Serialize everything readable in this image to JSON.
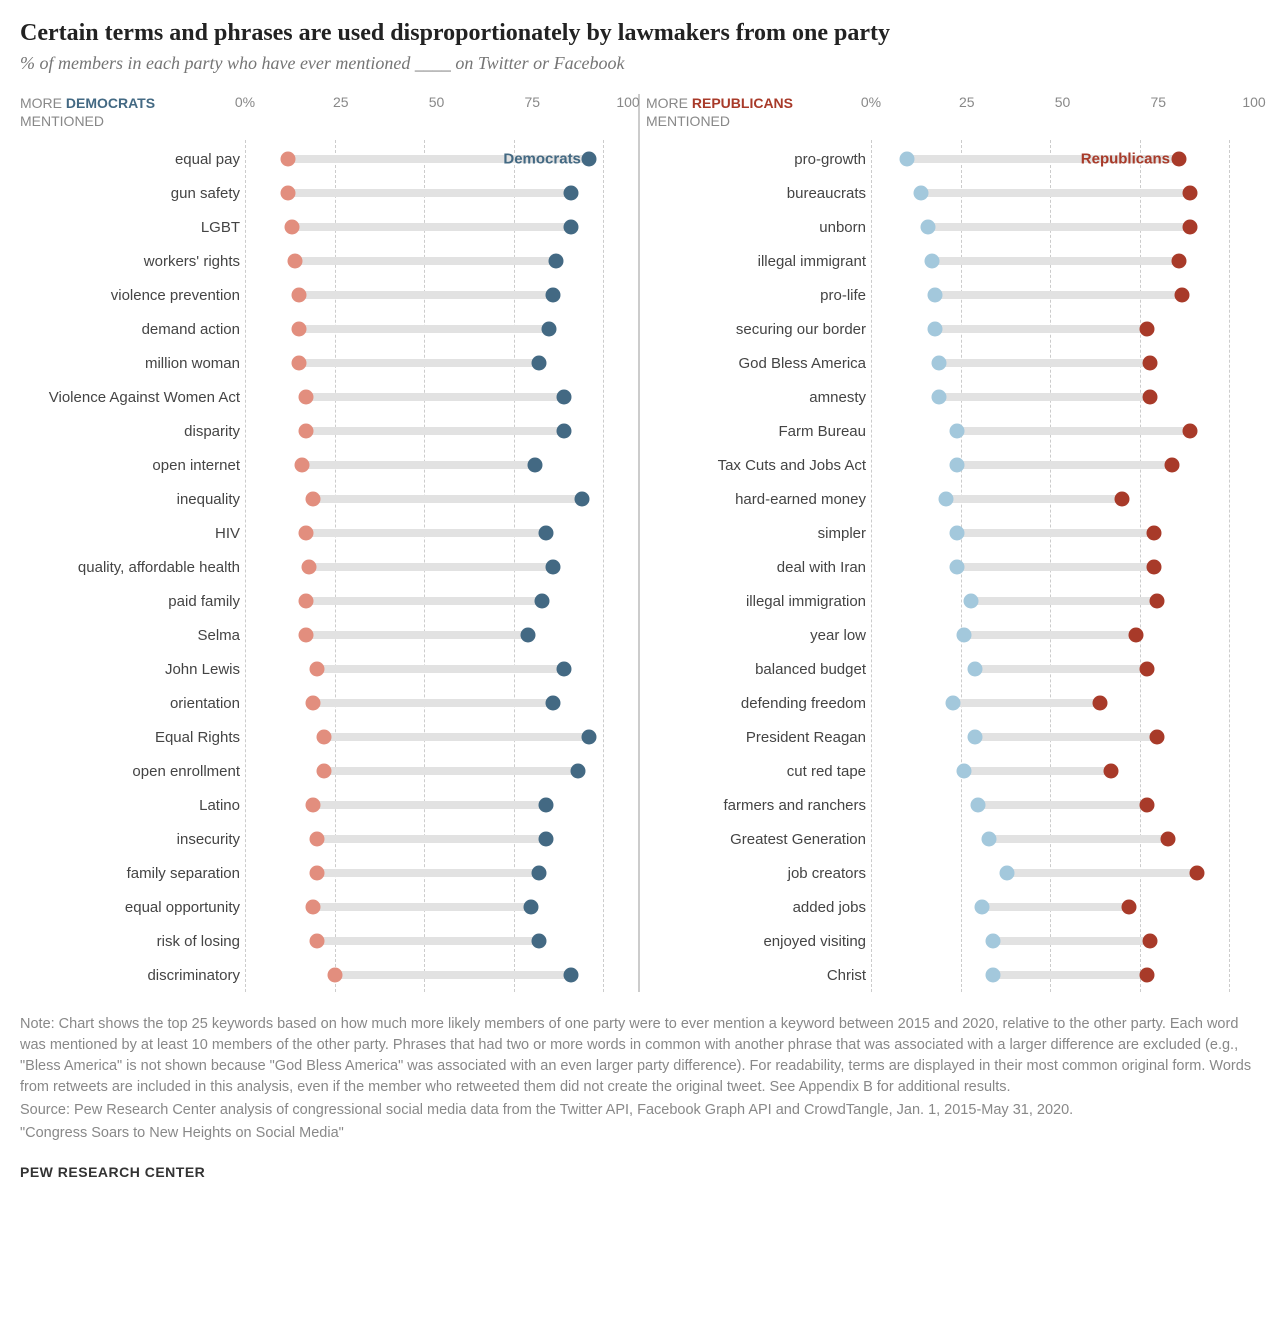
{
  "title": "Certain terms and phrases are used disproportionately by lawmakers from one party",
  "subtitle": "% of members in each party who have ever mentioned ____ on Twitter or Facebook",
  "colors": {
    "dem_strong": "#436983",
    "dem_light": "#a3c8dc",
    "rep_strong": "#a83a29",
    "rep_light": "#e28e7e",
    "bar_bg": "#e2e2e2",
    "text_gray": "#888"
  },
  "axis": {
    "ticks": [
      0,
      25,
      50,
      75,
      100
    ],
    "tick_labels": [
      "0%",
      "25",
      "50",
      "75",
      "100"
    ]
  },
  "left": {
    "label_l1": "MORE ",
    "label_strong": "DEMOCRATS",
    "label_l2": "MENTIONED",
    "series_label": "Democrats",
    "rows": [
      {
        "label": "equal pay",
        "lo": 12,
        "hi": 96
      },
      {
        "label": "gun safety",
        "lo": 12,
        "hi": 91
      },
      {
        "label": "LGBT",
        "lo": 13,
        "hi": 91
      },
      {
        "label": "workers' rights",
        "lo": 14,
        "hi": 87
      },
      {
        "label": "violence prevention",
        "lo": 15,
        "hi": 86
      },
      {
        "label": "demand action",
        "lo": 15,
        "hi": 85
      },
      {
        "label": "million woman",
        "lo": 15,
        "hi": 82
      },
      {
        "label": "Violence Against Women Act",
        "lo": 17,
        "hi": 89
      },
      {
        "label": "disparity",
        "lo": 17,
        "hi": 89
      },
      {
        "label": "open internet",
        "lo": 16,
        "hi": 81
      },
      {
        "label": "inequality",
        "lo": 19,
        "hi": 94
      },
      {
        "label": "HIV",
        "lo": 17,
        "hi": 84
      },
      {
        "label": "quality, affordable health",
        "lo": 18,
        "hi": 86
      },
      {
        "label": "paid family",
        "lo": 17,
        "hi": 83
      },
      {
        "label": "Selma",
        "lo": 17,
        "hi": 79
      },
      {
        "label": "John Lewis",
        "lo": 20,
        "hi": 89
      },
      {
        "label": "orientation",
        "lo": 19,
        "hi": 86
      },
      {
        "label": "Equal Rights",
        "lo": 22,
        "hi": 96
      },
      {
        "label": "open enrollment",
        "lo": 22,
        "hi": 93
      },
      {
        "label": "Latino",
        "lo": 19,
        "hi": 84
      },
      {
        "label": "insecurity",
        "lo": 20,
        "hi": 84
      },
      {
        "label": "family separation",
        "lo": 20,
        "hi": 82
      },
      {
        "label": "equal opportunity",
        "lo": 19,
        "hi": 80
      },
      {
        "label": "risk of losing",
        "lo": 20,
        "hi": 82
      },
      {
        "label": "discriminatory",
        "lo": 25,
        "hi": 91
      }
    ]
  },
  "right": {
    "label_l1": "MORE ",
    "label_strong": "REPUBLICANS",
    "label_l2": "MENTIONED",
    "series_label": "Republicans",
    "rows": [
      {
        "label": "pro-growth",
        "lo": 10,
        "hi": 86
      },
      {
        "label": "bureaucrats",
        "lo": 14,
        "hi": 89
      },
      {
        "label": "unborn",
        "lo": 16,
        "hi": 89
      },
      {
        "label": "illegal immigrant",
        "lo": 17,
        "hi": 86
      },
      {
        "label": "pro-life",
        "lo": 18,
        "hi": 87
      },
      {
        "label": "securing our border",
        "lo": 18,
        "hi": 77
      },
      {
        "label": "God Bless America",
        "lo": 19,
        "hi": 78
      },
      {
        "label": "amnesty",
        "lo": 19,
        "hi": 78
      },
      {
        "label": "Farm Bureau",
        "lo": 24,
        "hi": 89
      },
      {
        "label": "Tax Cuts and Jobs Act",
        "lo": 24,
        "hi": 84
      },
      {
        "label": "hard-earned money",
        "lo": 21,
        "hi": 70
      },
      {
        "label": "simpler",
        "lo": 24,
        "hi": 79
      },
      {
        "label": "deal with Iran",
        "lo": 24,
        "hi": 79
      },
      {
        "label": "illegal immigration",
        "lo": 28,
        "hi": 80
      },
      {
        "label": "year low",
        "lo": 26,
        "hi": 74
      },
      {
        "label": "balanced budget",
        "lo": 29,
        "hi": 77
      },
      {
        "label": "defending freedom",
        "lo": 23,
        "hi": 64
      },
      {
        "label": "President Reagan",
        "lo": 29,
        "hi": 80
      },
      {
        "label": "cut red tape",
        "lo": 26,
        "hi": 67
      },
      {
        "label": "farmers and ranchers",
        "lo": 30,
        "hi": 77
      },
      {
        "label": "Greatest Generation",
        "lo": 33,
        "hi": 83
      },
      {
        "label": "job creators",
        "lo": 38,
        "hi": 91
      },
      {
        "label": "added jobs",
        "lo": 31,
        "hi": 72
      },
      {
        "label": "enjoyed visiting",
        "lo": 34,
        "hi": 78
      },
      {
        "label": "Christ",
        "lo": 34,
        "hi": 77
      }
    ]
  },
  "note": "Note: Chart shows the top 25 keywords based on how much more likely members of one party were to ever mention a keyword between 2015 and 2020, relative to the other party. Each word was mentioned by at least 10 members of the other party. Phrases that had two or more words in common with another phrase that was associated with a larger difference are excluded (e.g., \"Bless America\" is not shown because \"God Bless America\" was associated with an even larger party difference). For readability, terms are displayed in their most common original form. Words from retweets are included in this analysis, even if the member who retweeted them did not create the original tweet. See Appendix B for additional results.",
  "source": "Source: Pew Research Center analysis of congressional social media data from the Twitter API, Facebook Graph API and CrowdTangle, Jan. 1, 2015-May 31, 2020.",
  "report": "\"Congress Soars to New Heights on Social Media\"",
  "footer": "PEW RESEARCH CENTER"
}
